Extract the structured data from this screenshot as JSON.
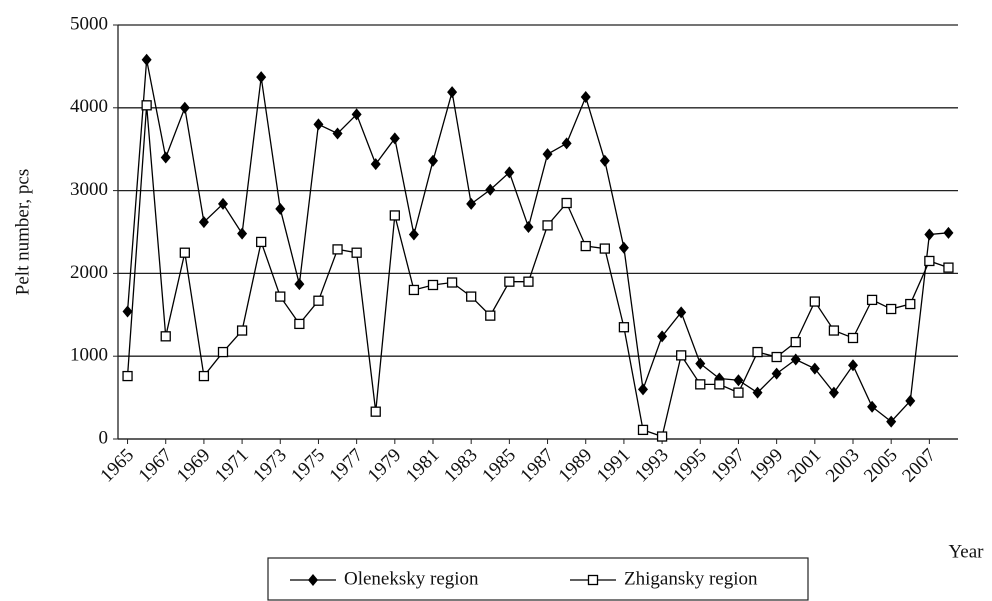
{
  "chart_data": {
    "type": "line",
    "y_label": "Pelt number, pcs",
    "x_label": "Year",
    "x": [
      1965,
      1966,
      1967,
      1968,
      1969,
      1970,
      1971,
      1972,
      1973,
      1974,
      1975,
      1976,
      1977,
      1978,
      1979,
      1980,
      1981,
      1982,
      1983,
      1984,
      1985,
      1986,
      1987,
      1988,
      1989,
      1990,
      1991,
      1992,
      1993,
      1994,
      1995,
      1996,
      1997,
      1998,
      1999,
      2000,
      2001,
      2002,
      2003,
      2004,
      2005,
      2006,
      2007,
      2008
    ],
    "series": [
      {
        "name": "Oleneksky region",
        "color": "#000000",
        "marker": "diamond",
        "values": [
          1540,
          4580,
          3400,
          4000,
          2620,
          2840,
          2480,
          4370,
          2780,
          1870,
          3800,
          3690,
          3920,
          3320,
          3630,
          2470,
          3360,
          4190,
          2840,
          3010,
          3220,
          2560,
          3440,
          3570,
          4130,
          3360,
          2310,
          600,
          1240,
          1530,
          910,
          730,
          710,
          560,
          790,
          960,
          850,
          560,
          890,
          390,
          210,
          460,
          2470,
          2490
        ]
      },
      {
        "name": "Zhigansky region",
        "color": "#000000",
        "marker": "square",
        "values": [
          760,
          4030,
          1240,
          2250,
          760,
          1050,
          1310,
          2380,
          1720,
          1390,
          1670,
          2290,
          2250,
          330,
          2700,
          1800,
          1860,
          1890,
          1720,
          1490,
          1900,
          1900,
          2580,
          2850,
          2330,
          2300,
          1350,
          110,
          30,
          1010,
          660,
          660,
          560,
          1050,
          990,
          1170,
          1660,
          1310,
          1220,
          1680,
          1570,
          1630,
          2150,
          2070
        ]
      }
    ],
    "xlim": [
      1964.5,
      2008.5
    ],
    "xticks": [
      1965,
      1967,
      1969,
      1971,
      1973,
      1975,
      1977,
      1979,
      1981,
      1983,
      1985,
      1987,
      1989,
      1991,
      1993,
      1995,
      1997,
      1999,
      2001,
      2003,
      2005,
      2007
    ],
    "ylim": [
      0,
      5000
    ],
    "yticks": [
      0,
      1000,
      2000,
      3000,
      4000,
      5000
    ],
    "grid": true,
    "legend": "bottom"
  }
}
